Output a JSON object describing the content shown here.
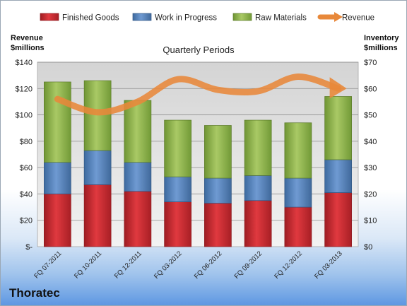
{
  "company": "Thoratec",
  "chart_data": {
    "type": "bar",
    "stacked": true,
    "title": "Quarterly Periods",
    "left_axis_label": [
      "Revenue",
      "$millions"
    ],
    "right_axis_label": [
      "Inventory",
      "$millions"
    ],
    "categories": [
      "FQ 07-2011",
      "FQ 10-2011",
      "FQ 12-2011",
      "FQ 03-2012",
      "FQ 06-2012",
      "FQ 09-2012",
      "FQ 12-2012",
      "FQ 03-2013"
    ],
    "left_ylim": [
      0,
      140
    ],
    "right_ylim": [
      0,
      70
    ],
    "left_ticks": [
      "$-",
      "$20",
      "$40",
      "$60",
      "$80",
      "$100",
      "$120",
      "$140"
    ],
    "right_ticks": [
      "$0",
      "$10",
      "$20",
      "$30",
      "$40",
      "$50",
      "$60",
      "$70"
    ],
    "series": [
      {
        "name": "Finished Goods",
        "axis": "right",
        "color": "#c0272d",
        "values": [
          20,
          23.5,
          21,
          17,
          16.5,
          17.5,
          15,
          20.5
        ]
      },
      {
        "name": "Work in Progress",
        "axis": "right",
        "color": "#4f81bd",
        "values": [
          12,
          13,
          11,
          9.5,
          9.5,
          9.5,
          11,
          12.5
        ]
      },
      {
        "name": "Raw Materials",
        "axis": "right",
        "color": "#8ab143",
        "values": [
          30.5,
          26.5,
          23.5,
          21.5,
          20,
          21,
          21,
          24
        ]
      },
      {
        "name": "Revenue",
        "axis": "left",
        "type": "line",
        "color": "#e8883a",
        "values": [
          112,
          102,
          110,
          127,
          119,
          118,
          129,
          120
        ]
      }
    ],
    "legend_position": "top",
    "grid": true
  }
}
